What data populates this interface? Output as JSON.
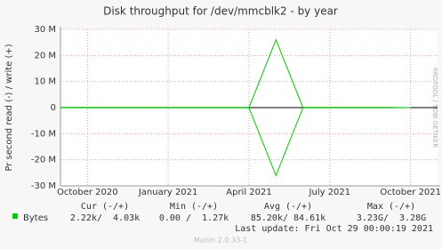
{
  "chart_data": {
    "type": "line",
    "title": "Disk throughput for /dev/mmcblk2 - by year",
    "y_label": "Pr second read (-) / write (+)",
    "side_label": "RRDTOOL / TOBI OETIKER",
    "x": [
      "2020-09",
      "2020-10",
      "2020-11",
      "2020-12",
      "2021-01",
      "2021-02",
      "2021-03",
      "2021-04",
      "2021-05",
      "2021-06",
      "2021-07",
      "2021-08",
      "2021-09",
      "2021-10"
    ],
    "xlim": [
      "2020-09",
      "2021-11"
    ],
    "xticks": [
      {
        "value": "2020-10",
        "label": "October 2020"
      },
      {
        "value": "2021-01",
        "label": "January 2021"
      },
      {
        "value": "2021-04",
        "label": "April 2021"
      },
      {
        "value": "2021-07",
        "label": "July 2021"
      },
      {
        "value": "2021-10",
        "label": "October 2021"
      }
    ],
    "ylim": [
      -30000000,
      30000000
    ],
    "yticks": [
      {
        "value": -30000000,
        "label": "-30 M"
      },
      {
        "value": -20000000,
        "label": "-20 M"
      },
      {
        "value": -10000000,
        "label": "-10 M"
      },
      0,
      {
        "value": 10000000,
        "label": "10 M"
      },
      {
        "value": 20000000,
        "label": "20 M"
      },
      {
        "value": 30000000,
        "label": "30 M"
      }
    ],
    "grid": true,
    "series": [
      {
        "name": "Bytes",
        "color": "#00cc00",
        "values": [
          60000,
          80000,
          70000,
          90000,
          85000,
          75000,
          80000,
          95000,
          26000000,
          90000,
          85000,
          80000,
          75000,
          4030
        ],
        "read_values": [
          -50000,
          -70000,
          -60000,
          -80000,
          -85000,
          -70000,
          -75000,
          -90000,
          -26000000,
          -85000,
          -80000,
          -75000,
          -70000,
          -2220
        ]
      }
    ],
    "legend_table": {
      "columns": [
        "Cur (-/+)",
        "Min (-/+)",
        "Avg (-/+)",
        "Max (-/+)"
      ],
      "rows": [
        {
          "cells": [
            "2.22k/  4.03k",
            "0.00 /  1.27k",
            "85.20k/ 84.61k",
            "3.23G/  3.28G"
          ]
        }
      ]
    },
    "last_update": "Last update: Fri Oct 29 00:00:19 2021",
    "footer": "Munin 2.0.33-1"
  }
}
